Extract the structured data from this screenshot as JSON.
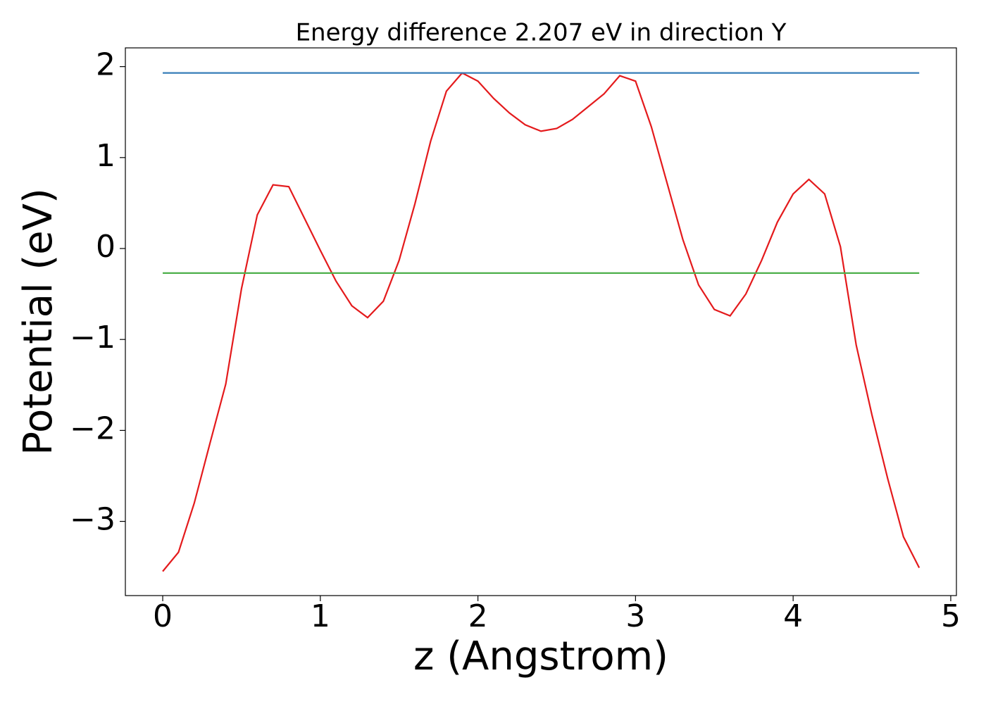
{
  "chart_data": {
    "type": "line",
    "title": "Energy difference 2.207 eV in direction Y",
    "xlabel": "z (Angstrom)",
    "ylabel": "Potential (eV)",
    "series": [
      {
        "color": "#e41a1c",
        "x": [
          0,
          0.1,
          0.2,
          0.3,
          0.4,
          0.5,
          0.6,
          0.7,
          0.8,
          0.9,
          1.0,
          1.1,
          1.2,
          1.3,
          1.4,
          1.5,
          1.6,
          1.7,
          1.8,
          1.9,
          2.0,
          2.1,
          2.2,
          2.3,
          2.4,
          2.5,
          2.6,
          2.7,
          2.8,
          2.9,
          3.0,
          3.1,
          3.2,
          3.3,
          3.4,
          3.5,
          3.6,
          3.7,
          3.8,
          3.9,
          4.0,
          4.1,
          4.2,
          4.3,
          4.4,
          4.5,
          4.6,
          4.7,
          4.8
        ],
        "values": [
          -3.55,
          -3.34,
          -2.8,
          -2.14,
          -1.49,
          -0.44,
          0.37,
          0.7,
          0.68,
          0.33,
          -0.02,
          -0.36,
          -0.63,
          -0.76,
          -0.58,
          -0.13,
          0.49,
          1.18,
          1.73,
          1.93,
          1.84,
          1.65,
          1.49,
          1.36,
          1.29,
          1.32,
          1.42,
          1.56,
          1.7,
          1.9,
          1.84,
          1.34,
          0.72,
          0.1,
          -0.4,
          -0.67,
          -0.74,
          -0.5,
          -0.13,
          0.29,
          0.6,
          0.76,
          0.6,
          0.02,
          -1.06,
          -1.83,
          -2.53,
          -3.17,
          -3.51
        ]
      },
      {
        "color": "#377eb8",
        "x": [
          0,
          4.8
        ],
        "values": [
          1.93,
          1.93
        ]
      },
      {
        "color": "#4daf4a",
        "x": [
          0,
          4.8
        ],
        "values": [
          -0.27,
          -0.27
        ]
      }
    ],
    "xlim": [
      -0.237,
      5.036
    ],
    "ylim": [
      -3.816,
      2.206
    ],
    "xticks": [
      0,
      1,
      2,
      3,
      4,
      5
    ],
    "yticks": [
      {
        "value": -3,
        "label": "−3"
      },
      {
        "value": -2,
        "label": "−2"
      },
      {
        "value": -1,
        "label": "−1"
      },
      0,
      1,
      2
    ],
    "grid": false
  }
}
